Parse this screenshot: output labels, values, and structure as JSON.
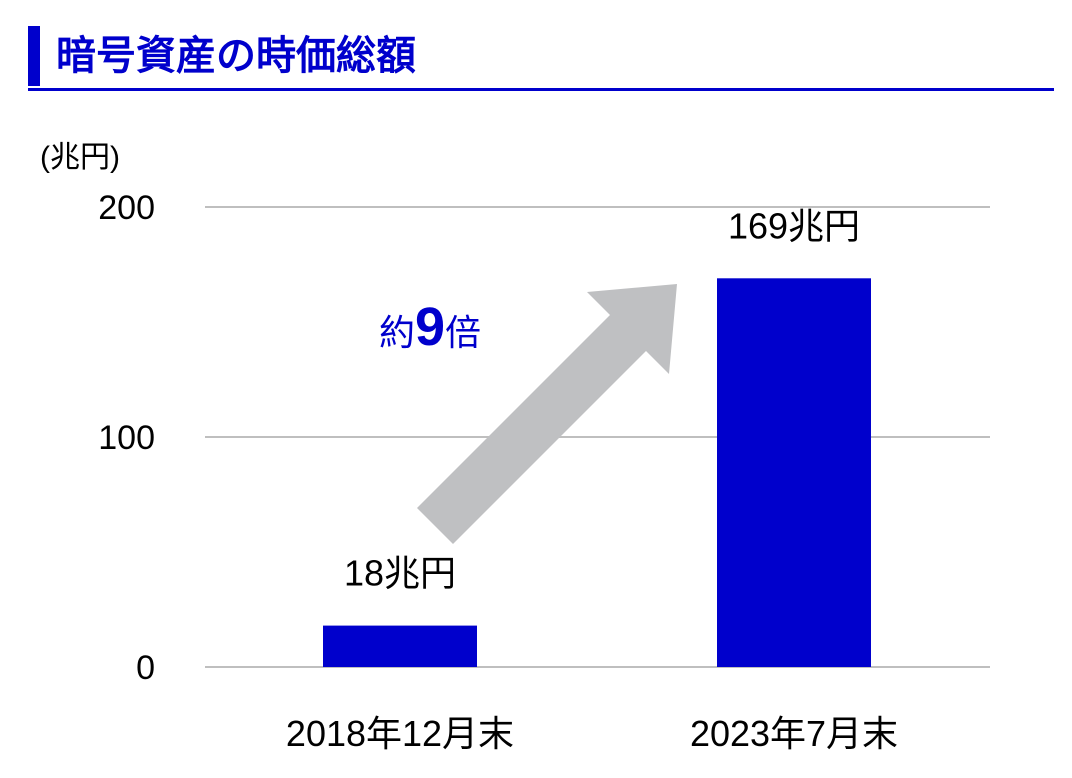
{
  "title": "暗号資産の時価総額",
  "chart_data": {
    "type": "bar",
    "categories": [
      "2018年12月末",
      "2023年7月末"
    ],
    "values": [
      18,
      169
    ],
    "data_labels": [
      "18兆円",
      "169兆円"
    ],
    "ylabel": "(兆円)",
    "ylim": [
      0,
      200
    ],
    "yticks": [
      0,
      100,
      200
    ],
    "ytick_labels": [
      "0",
      "100",
      "200"
    ],
    "grid": true,
    "annotation": {
      "prefix": "約",
      "number": "9",
      "suffix": "倍"
    }
  },
  "colors": {
    "accent": "#0000cc",
    "bar": "#0000cc",
    "arrow": "#bfc0c2",
    "grid": "#bfbfbf"
  }
}
